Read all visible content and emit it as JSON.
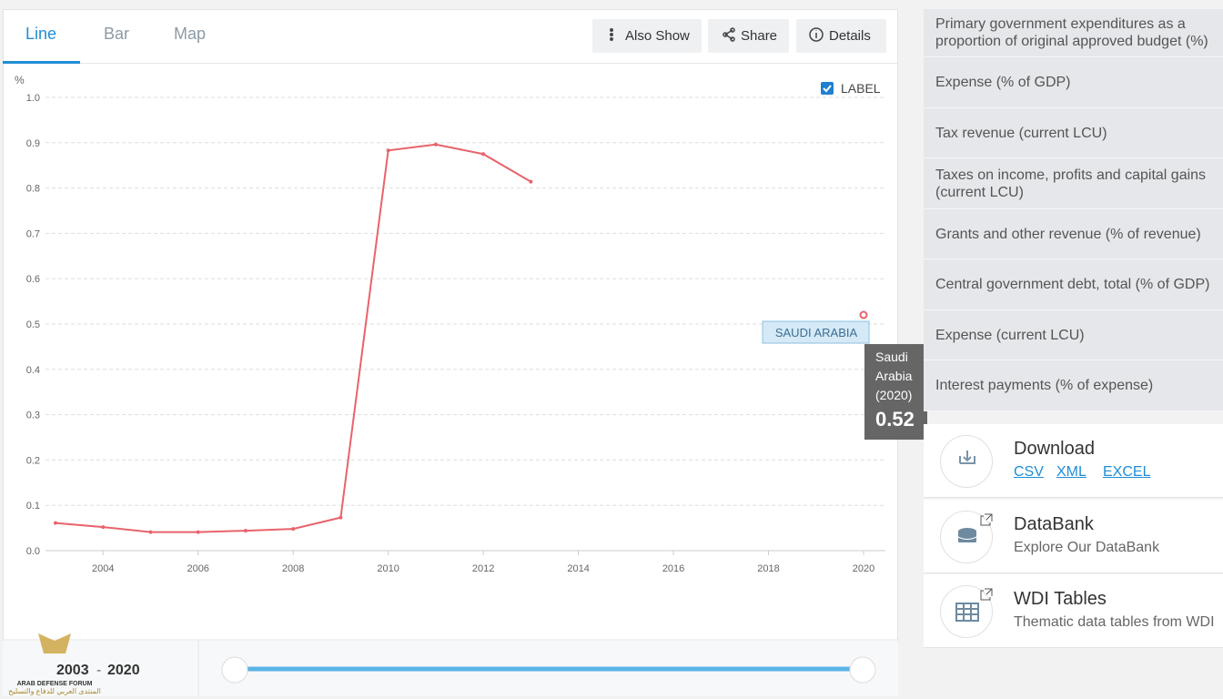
{
  "tabs": [
    "Line",
    "Bar",
    "Map"
  ],
  "actions": [
    "Also Show",
    "Share",
    "Details"
  ],
  "chart_data": {
    "type": "line",
    "y_unit": "%",
    "label_toggle": "LABEL",
    "x": [
      2003,
      2004,
      2005,
      2006,
      2007,
      2008,
      2009,
      2010,
      2011,
      2012,
      2013,
      2014,
      2015,
      2016,
      2017,
      2018,
      2019,
      2020
    ],
    "xlim": [
      2003,
      2020
    ],
    "xticks": [
      2004,
      2006,
      2008,
      2010,
      2012,
      2014,
      2016,
      2018,
      2020
    ],
    "ylim": [
      0,
      1
    ],
    "yticks": [
      {
        "value": 0,
        "label": "0.0"
      },
      0.1,
      0.2,
      0.3,
      0.4,
      0.5,
      0.6,
      0.7,
      0.8,
      0.9,
      {
        "value": 1,
        "label": "1.0"
      }
    ],
    "grid": true,
    "series": [
      {
        "name": "SAUDI ARABIA",
        "color": "#e8636b",
        "values": [
          0.061,
          0.052,
          0.041,
          0.041,
          0.044,
          0.048,
          0.073,
          0.883,
          0.896,
          0.875,
          0.814,
          null,
          null,
          null,
          null,
          null,
          null,
          0.52
        ]
      }
    ],
    "tooltip": {
      "title": "Saudi Arabia",
      "period": "(2020)"
    }
  },
  "range": {
    "start": "2003",
    "separator": "-",
    "end": "2020"
  },
  "indicators": [
    "Primary government expenditures as a proportion of original approved budget (%)",
    "Expense (% of GDP)",
    "Tax revenue (current LCU)",
    "Taxes on income, profits and capital gains (current LCU)",
    "Grants and other revenue (% of revenue)",
    "Central government debt, total (% of GDP)",
    "Expense (current LCU)",
    "Interest payments (% of expense)"
  ],
  "links": [
    {
      "title": "Download",
      "formats": [
        "CSV",
        "XML",
        "EXCEL"
      ]
    },
    {
      "title": "DataBank",
      "subtitle": "Explore Our DataBank"
    },
    {
      "title": "WDI Tables",
      "subtitle": "Thematic data tables from WDI"
    }
  ],
  "watermark": {
    "name": "ARAB DEFENSE FORUM",
    "arabic": "المنتدى العربي للدفاع والتسليح"
  }
}
